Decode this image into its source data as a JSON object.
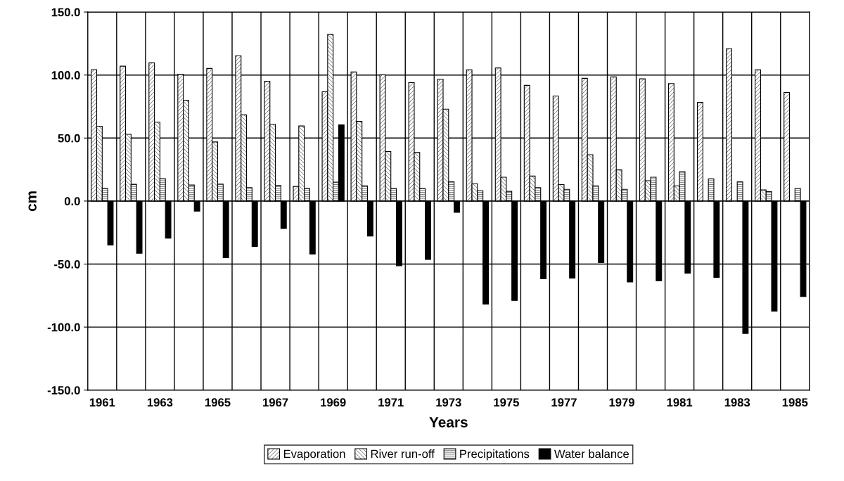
{
  "chart_data": {
    "type": "bar",
    "xlabel": "Years",
    "ylabel": "cm",
    "categories": [
      "1961",
      null,
      "1963",
      null,
      "1965",
      null,
      "1967",
      null,
      "1969",
      null,
      "1971",
      null,
      "1973",
      null,
      "1975",
      null,
      "1977",
      null,
      "1979",
      null,
      "1981",
      null,
      "1983",
      null,
      "1985"
    ],
    "series": [
      {
        "name": "Evaporation",
        "color": "#000000",
        "values": [
          104.3,
          107,
          109.7,
          100.6,
          105.2,
          115.3,
          95.1,
          11.6,
          86.7,
          102.4,
          100.2,
          94,
          96.8,
          104.1,
          105.6,
          91.8,
          83.4,
          97.4,
          98.5,
          97,
          93.3,
          78.3,
          120.9,
          104.1,
          86.2
        ]
      },
      {
        "name": "River run-off",
        "color": "#000000",
        "values": [
          59.4,
          53,
          62.6,
          80,
          46.9,
          68.4,
          60.9,
          59.6,
          132.3,
          63.2,
          39.3,
          38.5,
          72.9,
          13.8,
          18.9,
          19.8,
          13.1,
          36.8,
          24.7,
          16.1,
          12.1,
          null,
          null,
          8.8,
          null
        ]
      },
      {
        "name": "Precipitations",
        "color": "#000000",
        "values": [
          9.9,
          13.3,
          17.8,
          12.7,
          13.5,
          10.7,
          12.3,
          9.9,
          15,
          12,
          9.9,
          9.9,
          15.3,
          8.2,
          7.7,
          10.7,
          9.3,
          12.1,
          9.3,
          18.9,
          23.4,
          17.6,
          15.3,
          7.5,
          10
        ]
      },
      {
        "name": "Water balance",
        "color": "#000000",
        "values": [
          -34.9,
          -41.4,
          -29.5,
          -8,
          -45,
          -36,
          -21.8,
          -42,
          60.4,
          -27.8,
          -51.3,
          -46.3,
          -8.9,
          -81.7,
          -78.9,
          -61.7,
          -61.1,
          -48.9,
          -64.2,
          -63.2,
          -57.2,
          -60.6,
          -105,
          -87.4,
          -75.8
        ]
      }
    ],
    "ylim": [
      -150,
      150
    ],
    "yticks": [
      {
        "value": -150,
        "label": "-150.0"
      },
      {
        "value": -100,
        "label": "-100.0"
      },
      {
        "value": -50,
        "label": "-50.0"
      },
      {
        "value": 0,
        "label": "0.0"
      },
      {
        "value": 50,
        "label": "50.0"
      },
      {
        "value": 100,
        "label": "100.0"
      },
      {
        "value": 150,
        "label": "150.0"
      }
    ],
    "grid": true,
    "legend": "bottom"
  }
}
